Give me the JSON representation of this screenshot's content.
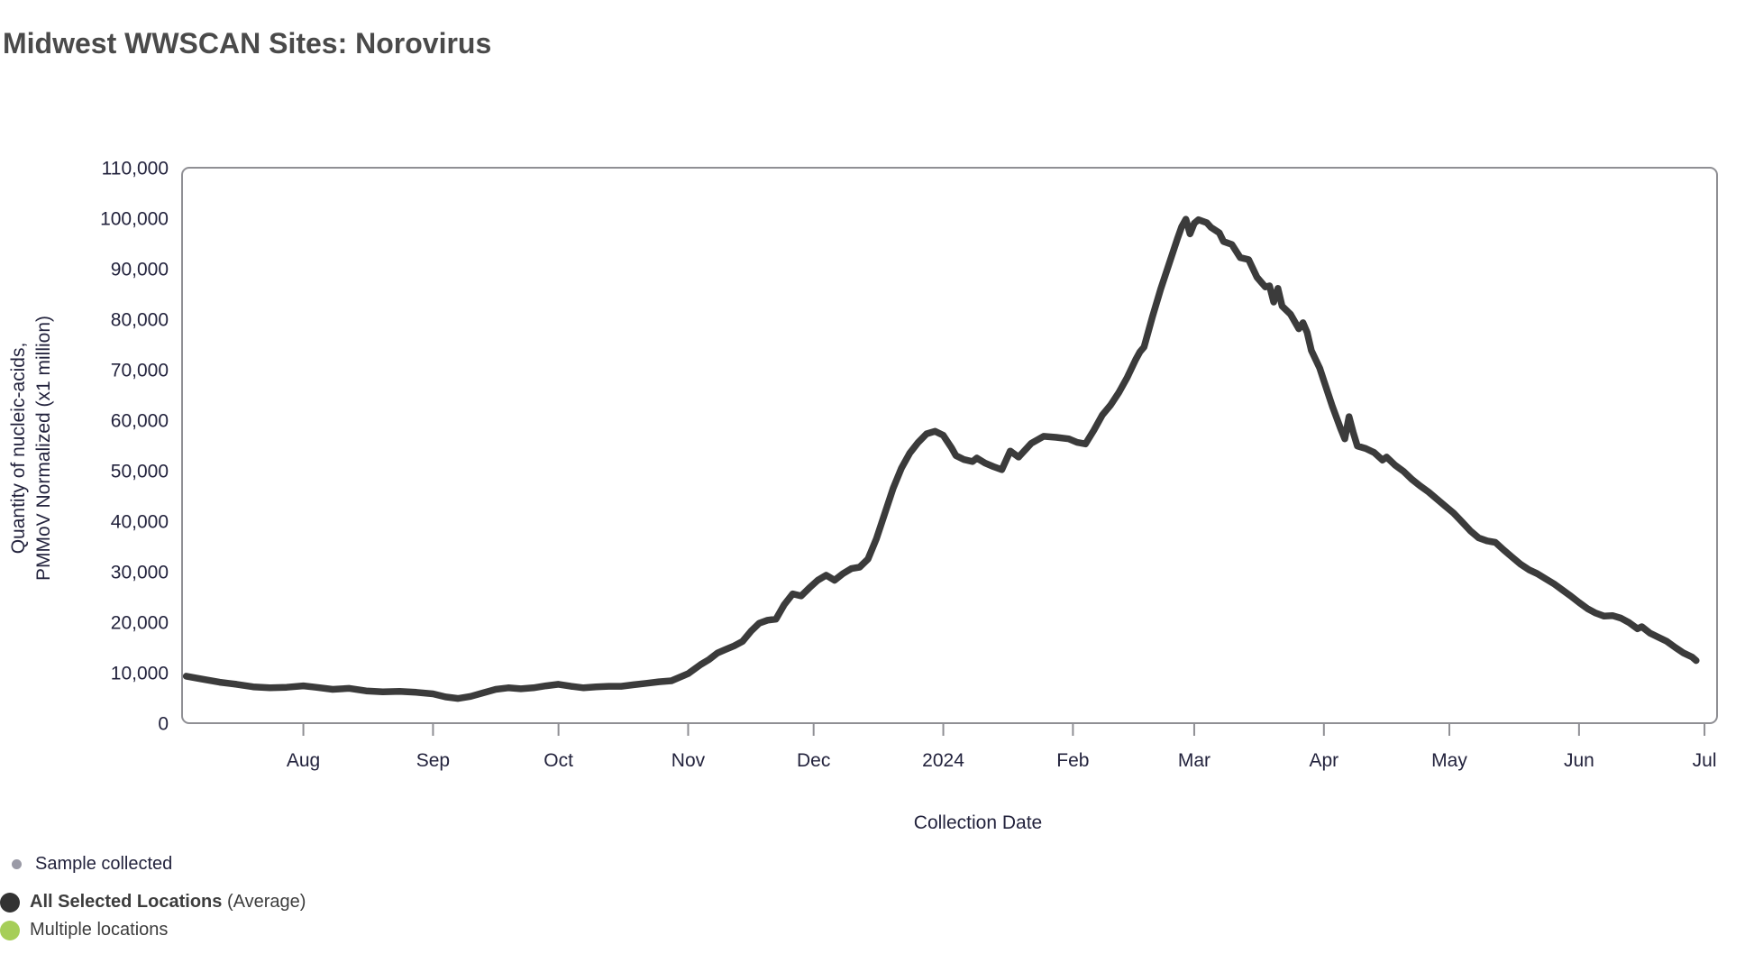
{
  "title": "Midwest WWSCAN Sites: Norovirus",
  "colors": {
    "title_text": "#4a4a4a",
    "axis_border": "#8f8f94",
    "tick_text": "#23233d",
    "axis_title_text": "#23233d",
    "line": "#3b3b3b",
    "legend_sample_dot": "#9a9aa6",
    "legend_average_dot": "#333333",
    "legend_multiple_dot": "#a6ce58",
    "background": "#ffffff"
  },
  "legend": {
    "items": [
      {
        "id": "sample-collected",
        "label": "Sample collected"
      },
      {
        "id": "all-selected-locations",
        "label_bold": "All Selected Locations",
        "label_suffix": " (Average)"
      },
      {
        "id": "multiple-locations",
        "label": "Multiple locations"
      }
    ]
  },
  "chart_data": {
    "type": "line",
    "title": "Midwest WWSCAN Sites: Norovirus",
    "xlabel": "Collection Date",
    "ylabel_line1": "Quantity of nucleic-acids,",
    "ylabel_line2": "PMMoV Normalized (x1 million)",
    "grid": false,
    "legend_position": "bottom-left",
    "ylim": [
      0,
      110000
    ],
    "ytick_values": [
      0,
      10000,
      20000,
      30000,
      40000,
      50000,
      60000,
      70000,
      80000,
      90000,
      100000,
      110000
    ],
    "x_domain": [
      "2023-07-03",
      "2024-07-04"
    ],
    "xticks": [
      {
        "date": "2023-08-01",
        "label": "Aug"
      },
      {
        "date": "2023-09-01",
        "label": "Sep"
      },
      {
        "date": "2023-10-01",
        "label": "Oct"
      },
      {
        "date": "2023-11-01",
        "label": "Nov"
      },
      {
        "date": "2023-12-01",
        "label": "Dec"
      },
      {
        "date": "2024-01-01",
        "label": "2024"
      },
      {
        "date": "2024-02-01",
        "label": "Feb"
      },
      {
        "date": "2024-03-01",
        "label": "Mar"
      },
      {
        "date": "2024-04-01",
        "label": "Apr"
      },
      {
        "date": "2024-05-01",
        "label": "May"
      },
      {
        "date": "2024-06-01",
        "label": "Jun"
      },
      {
        "date": "2024-07-01",
        "label": "Jul"
      }
    ],
    "series": [
      {
        "name": "All Selected Locations (Average)",
        "points": [
          {
            "date": "2023-07-04",
            "value": 9300
          },
          {
            "date": "2023-07-08",
            "value": 8700
          },
          {
            "date": "2023-07-12",
            "value": 8100
          },
          {
            "date": "2023-07-16",
            "value": 7700
          },
          {
            "date": "2023-07-20",
            "value": 7200
          },
          {
            "date": "2023-07-24",
            "value": 7000
          },
          {
            "date": "2023-07-28",
            "value": 7100
          },
          {
            "date": "2023-08-01",
            "value": 7400
          },
          {
            "date": "2023-08-04",
            "value": 7100
          },
          {
            "date": "2023-08-08",
            "value": 6700
          },
          {
            "date": "2023-08-12",
            "value": 6900
          },
          {
            "date": "2023-08-16",
            "value": 6400
          },
          {
            "date": "2023-08-20",
            "value": 6200
          },
          {
            "date": "2023-08-24",
            "value": 6300
          },
          {
            "date": "2023-08-28",
            "value": 6100
          },
          {
            "date": "2023-09-01",
            "value": 5800
          },
          {
            "date": "2023-09-04",
            "value": 5200
          },
          {
            "date": "2023-09-07",
            "value": 4900
          },
          {
            "date": "2023-09-10",
            "value": 5300
          },
          {
            "date": "2023-09-13",
            "value": 6000
          },
          {
            "date": "2023-09-16",
            "value": 6700
          },
          {
            "date": "2023-09-19",
            "value": 7000
          },
          {
            "date": "2023-09-22",
            "value": 6800
          },
          {
            "date": "2023-09-25",
            "value": 7000
          },
          {
            "date": "2023-09-28",
            "value": 7400
          },
          {
            "date": "2023-10-01",
            "value": 7700
          },
          {
            "date": "2023-10-04",
            "value": 7300
          },
          {
            "date": "2023-10-07",
            "value": 7000
          },
          {
            "date": "2023-10-10",
            "value": 7200
          },
          {
            "date": "2023-10-13",
            "value": 7300
          },
          {
            "date": "2023-10-16",
            "value": 7300
          },
          {
            "date": "2023-10-19",
            "value": 7600
          },
          {
            "date": "2023-10-22",
            "value": 7900
          },
          {
            "date": "2023-10-25",
            "value": 8200
          },
          {
            "date": "2023-10-28",
            "value": 8400
          },
          {
            "date": "2023-11-01",
            "value": 9800
          },
          {
            "date": "2023-11-04",
            "value": 11600
          },
          {
            "date": "2023-11-06",
            "value": 12600
          },
          {
            "date": "2023-11-08",
            "value": 13900
          },
          {
            "date": "2023-11-10",
            "value": 14600
          },
          {
            "date": "2023-11-12",
            "value": 15300
          },
          {
            "date": "2023-11-14",
            "value": 16200
          },
          {
            "date": "2023-11-16",
            "value": 18200
          },
          {
            "date": "2023-11-18",
            "value": 19800
          },
          {
            "date": "2023-11-20",
            "value": 20400
          },
          {
            "date": "2023-11-22",
            "value": 20600
          },
          {
            "date": "2023-11-24",
            "value": 23500
          },
          {
            "date": "2023-11-26",
            "value": 25600
          },
          {
            "date": "2023-11-28",
            "value": 25200
          },
          {
            "date": "2023-11-30",
            "value": 26800
          },
          {
            "date": "2023-12-02",
            "value": 28300
          },
          {
            "date": "2023-12-04",
            "value": 29300
          },
          {
            "date": "2023-12-06",
            "value": 28300
          },
          {
            "date": "2023-12-08",
            "value": 29600
          },
          {
            "date": "2023-12-10",
            "value": 30600
          },
          {
            "date": "2023-12-12",
            "value": 30900
          },
          {
            "date": "2023-12-14",
            "value": 32500
          },
          {
            "date": "2023-12-16",
            "value": 36500
          },
          {
            "date": "2023-12-18",
            "value": 41500
          },
          {
            "date": "2023-12-20",
            "value": 46500
          },
          {
            "date": "2023-12-22",
            "value": 50500
          },
          {
            "date": "2023-12-24",
            "value": 53500
          },
          {
            "date": "2023-12-26",
            "value": 55600
          },
          {
            "date": "2023-12-28",
            "value": 57300
          },
          {
            "date": "2023-12-30",
            "value": 57800
          },
          {
            "date": "2024-01-01",
            "value": 57000
          },
          {
            "date": "2024-01-03",
            "value": 54500
          },
          {
            "date": "2024-01-04",
            "value": 53000
          },
          {
            "date": "2024-01-06",
            "value": 52200
          },
          {
            "date": "2024-01-08",
            "value": 51800
          },
          {
            "date": "2024-01-09",
            "value": 52500
          },
          {
            "date": "2024-01-11",
            "value": 51500
          },
          {
            "date": "2024-01-13",
            "value": 50800
          },
          {
            "date": "2024-01-15",
            "value": 50200
          },
          {
            "date": "2024-01-17",
            "value": 53900
          },
          {
            "date": "2024-01-19",
            "value": 52700
          },
          {
            "date": "2024-01-22",
            "value": 55400
          },
          {
            "date": "2024-01-25",
            "value": 56800
          },
          {
            "date": "2024-01-28",
            "value": 56600
          },
          {
            "date": "2024-01-31",
            "value": 56300
          },
          {
            "date": "2024-02-02",
            "value": 55600
          },
          {
            "date": "2024-02-04",
            "value": 55300
          },
          {
            "date": "2024-02-06",
            "value": 58000
          },
          {
            "date": "2024-02-08",
            "value": 61000
          },
          {
            "date": "2024-02-10",
            "value": 63000
          },
          {
            "date": "2024-02-12",
            "value": 65500
          },
          {
            "date": "2024-02-14",
            "value": 68500
          },
          {
            "date": "2024-02-16",
            "value": 72000
          },
          {
            "date": "2024-02-17",
            "value": 73500
          },
          {
            "date": "2024-02-18",
            "value": 74500
          },
          {
            "date": "2024-02-20",
            "value": 80500
          },
          {
            "date": "2024-02-22",
            "value": 86000
          },
          {
            "date": "2024-02-24",
            "value": 91000
          },
          {
            "date": "2024-02-26",
            "value": 96000
          },
          {
            "date": "2024-02-27",
            "value": 98300
          },
          {
            "date": "2024-02-28",
            "value": 99800
          },
          {
            "date": "2024-02-29",
            "value": 96900
          },
          {
            "date": "2024-03-01",
            "value": 99000
          },
          {
            "date": "2024-03-02",
            "value": 99700
          },
          {
            "date": "2024-03-04",
            "value": 99100
          },
          {
            "date": "2024-03-05",
            "value": 98200
          },
          {
            "date": "2024-03-07",
            "value": 97100
          },
          {
            "date": "2024-03-08",
            "value": 95400
          },
          {
            "date": "2024-03-10",
            "value": 94800
          },
          {
            "date": "2024-03-12",
            "value": 92200
          },
          {
            "date": "2024-03-14",
            "value": 91800
          },
          {
            "date": "2024-03-16",
            "value": 88300
          },
          {
            "date": "2024-03-18",
            "value": 86400
          },
          {
            "date": "2024-03-19",
            "value": 86600
          },
          {
            "date": "2024-03-20",
            "value": 83400
          },
          {
            "date": "2024-03-21",
            "value": 86100
          },
          {
            "date": "2024-03-22",
            "value": 82600
          },
          {
            "date": "2024-03-24",
            "value": 81000
          },
          {
            "date": "2024-03-26",
            "value": 78100
          },
          {
            "date": "2024-03-27",
            "value": 79300
          },
          {
            "date": "2024-03-28",
            "value": 77400
          },
          {
            "date": "2024-03-29",
            "value": 73800
          },
          {
            "date": "2024-03-31",
            "value": 70300
          },
          {
            "date": "2024-04-01",
            "value": 67800
          },
          {
            "date": "2024-04-03",
            "value": 62800
          },
          {
            "date": "2024-04-05",
            "value": 58300
          },
          {
            "date": "2024-04-06",
            "value": 56300
          },
          {
            "date": "2024-04-07",
            "value": 60700
          },
          {
            "date": "2024-04-08",
            "value": 57600
          },
          {
            "date": "2024-04-09",
            "value": 54900
          },
          {
            "date": "2024-04-11",
            "value": 54400
          },
          {
            "date": "2024-04-13",
            "value": 53600
          },
          {
            "date": "2024-04-15",
            "value": 52100
          },
          {
            "date": "2024-04-16",
            "value": 52700
          },
          {
            "date": "2024-04-18",
            "value": 51100
          },
          {
            "date": "2024-04-20",
            "value": 49900
          },
          {
            "date": "2024-04-22",
            "value": 48300
          },
          {
            "date": "2024-04-24",
            "value": 47000
          },
          {
            "date": "2024-04-26",
            "value": 45800
          },
          {
            "date": "2024-04-28",
            "value": 44400
          },
          {
            "date": "2024-04-30",
            "value": 43000
          },
          {
            "date": "2024-05-02",
            "value": 41600
          },
          {
            "date": "2024-05-04",
            "value": 39900
          },
          {
            "date": "2024-05-06",
            "value": 38100
          },
          {
            "date": "2024-05-08",
            "value": 36700
          },
          {
            "date": "2024-05-10",
            "value": 36100
          },
          {
            "date": "2024-05-12",
            "value": 35800
          },
          {
            "date": "2024-05-14",
            "value": 34300
          },
          {
            "date": "2024-05-16",
            "value": 32900
          },
          {
            "date": "2024-05-18",
            "value": 31500
          },
          {
            "date": "2024-05-20",
            "value": 30400
          },
          {
            "date": "2024-05-22",
            "value": 29600
          },
          {
            "date": "2024-05-24",
            "value": 28600
          },
          {
            "date": "2024-05-26",
            "value": 27600
          },
          {
            "date": "2024-05-28",
            "value": 26400
          },
          {
            "date": "2024-05-30",
            "value": 25200
          },
          {
            "date": "2024-06-01",
            "value": 23900
          },
          {
            "date": "2024-06-03",
            "value": 22700
          },
          {
            "date": "2024-06-05",
            "value": 21800
          },
          {
            "date": "2024-06-07",
            "value": 21200
          },
          {
            "date": "2024-06-09",
            "value": 21300
          },
          {
            "date": "2024-06-11",
            "value": 20800
          },
          {
            "date": "2024-06-13",
            "value": 19900
          },
          {
            "date": "2024-06-15",
            "value": 18700
          },
          {
            "date": "2024-06-16",
            "value": 19100
          },
          {
            "date": "2024-06-18",
            "value": 17800
          },
          {
            "date": "2024-06-20",
            "value": 17000
          },
          {
            "date": "2024-06-22",
            "value": 16200
          },
          {
            "date": "2024-06-24",
            "value": 15000
          },
          {
            "date": "2024-06-26",
            "value": 13900
          },
          {
            "date": "2024-06-28",
            "value": 13100
          },
          {
            "date": "2024-06-29",
            "value": 12400
          }
        ]
      }
    ]
  }
}
